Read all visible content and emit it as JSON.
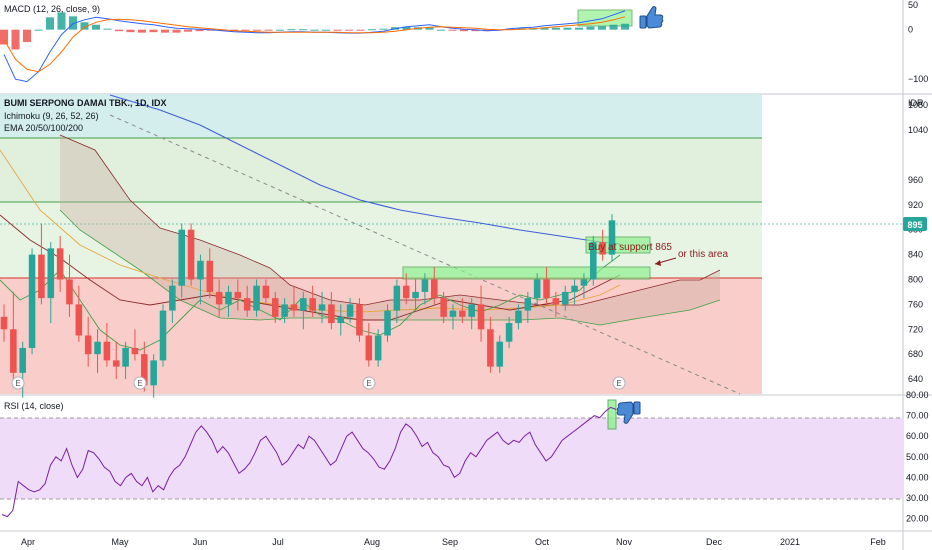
{
  "colors": {
    "up": "#26a69a",
    "down": "#ef5350",
    "macd_line": "#2962ff",
    "signal_line": "#ff6d00",
    "rsi_line": "#7b1fa2",
    "ema_blue": "#3f5fd8",
    "ichimoku_red": "#8b2a2a",
    "ichimoku_green": "#43a047",
    "zone_red": "#f8c9c6",
    "zone_green": "#dff0dc",
    "zone_teal": "#cdeaea",
    "rsi_band": "#eedcf8",
    "annotation": "#8b1c1c",
    "highlight_box": "#66e066"
  },
  "price_pane": {
    "title": "BUMI SERPONG DAMAI TBK., 1D, IDX",
    "indicators": [
      "Ichimoku (9, 26, 52, 26)",
      "EMA 20/50/100/200"
    ],
    "currency": "IDR",
    "last_price": "895",
    "earnings_marker": "E",
    "annotations": {
      "buy_support": "Buy at support 865",
      "or_area": "or this area"
    }
  },
  "macd_pane": {
    "title": "MACD (12, 26, close, 9)",
    "thumb_up_icon": "thumbs-up-icon"
  },
  "rsi_pane": {
    "title": "RSI (14, close)",
    "thumb_down_icon": "thumbs-down-icon"
  },
  "x_axis": {
    "labels": [
      "Apr",
      "May",
      "Jun",
      "Jul",
      "Aug",
      "Sep",
      "Oct",
      "Nov",
      "Dec",
      "2021",
      "Feb"
    ]
  },
  "chart_data": [
    {
      "type": "bar",
      "name": "MACD (12, 26, close, 9)",
      "y_ticks": [
        50,
        0,
        -100
      ],
      "ylim": [
        -130,
        60
      ],
      "macd": [
        -50,
        -100,
        -105,
        -85,
        -45,
        -10,
        12,
        20,
        25,
        22,
        18,
        15,
        12,
        10,
        6,
        3,
        2,
        1,
        0,
        -2,
        -4,
        -5,
        -6,
        -6,
        -5,
        -4,
        -4,
        -5,
        -5,
        -6,
        -7,
        -7,
        -5,
        -3,
        2,
        6,
        8,
        10,
        6,
        3,
        1,
        0,
        -2,
        -1,
        2,
        4,
        5,
        8,
        10,
        12,
        14,
        18,
        22,
        30,
        38
      ],
      "signal": [
        -20,
        -60,
        -80,
        -85,
        -70,
        -45,
        -15,
        5,
        15,
        20,
        21,
        20,
        18,
        15,
        12,
        9,
        6,
        4,
        2,
        0,
        -2,
        -3,
        -4,
        -5,
        -5,
        -5,
        -5,
        -5,
        -5,
        -5,
        -6,
        -6,
        -6,
        -5,
        -3,
        0,
        3,
        5,
        6,
        5,
        4,
        3,
        1,
        0,
        0,
        1,
        2,
        4,
        6,
        8,
        10,
        12,
        15,
        20,
        26
      ]
    },
    {
      "type": "candlestick",
      "name": "BUMI SERPONG DAMAI TBK., 1D, IDX",
      "y_ticks": [
        1080,
        1040,
        960,
        920,
        880,
        840,
        800,
        760,
        720,
        680,
        640
      ],
      "ylim": [
        616,
        1098
      ],
      "candles": [
        [
          740,
          760,
          700,
          720
        ],
        [
          720,
          780,
          640,
          650
        ],
        [
          650,
          700,
          610,
          690
        ],
        [
          690,
          850,
          680,
          840
        ],
        [
          840,
          890,
          760,
          770
        ],
        [
          770,
          860,
          730,
          850
        ],
        [
          850,
          870,
          780,
          800
        ],
        [
          800,
          840,
          740,
          760
        ],
        [
          760,
          790,
          700,
          710
        ],
        [
          710,
          740,
          660,
          680
        ],
        [
          680,
          720,
          650,
          700
        ],
        [
          700,
          730,
          660,
          670
        ],
        [
          670,
          700,
          640,
          660
        ],
        [
          660,
          700,
          640,
          690
        ],
        [
          690,
          720,
          670,
          680
        ],
        [
          680,
          700,
          620,
          630
        ],
        [
          630,
          680,
          610,
          670
        ],
        [
          670,
          760,
          660,
          750
        ],
        [
          750,
          800,
          730,
          790
        ],
        [
          790,
          890,
          770,
          880
        ],
        [
          880,
          890,
          790,
          800
        ],
        [
          800,
          840,
          760,
          830
        ],
        [
          830,
          850,
          770,
          780
        ],
        [
          780,
          800,
          740,
          760
        ],
        [
          760,
          790,
          740,
          780
        ],
        [
          780,
          800,
          750,
          770
        ],
        [
          770,
          790,
          740,
          750
        ],
        [
          750,
          800,
          740,
          790
        ],
        [
          790,
          800,
          760,
          770
        ],
        [
          770,
          780,
          730,
          740
        ],
        [
          740,
          770,
          730,
          760
        ],
        [
          760,
          790,
          740,
          750
        ],
        [
          750,
          780,
          720,
          770
        ],
        [
          770,
          790,
          740,
          750
        ],
        [
          750,
          780,
          730,
          760
        ],
        [
          760,
          780,
          720,
          730
        ],
        [
          730,
          760,
          710,
          740
        ],
        [
          740,
          770,
          730,
          760
        ],
        [
          760,
          770,
          700,
          710
        ],
        [
          710,
          730,
          660,
          670
        ],
        [
          670,
          720,
          660,
          710
        ],
        [
          710,
          760,
          700,
          750
        ],
        [
          750,
          800,
          730,
          790
        ],
        [
          790,
          810,
          760,
          770
        ],
        [
          770,
          800,
          750,
          780
        ],
        [
          780,
          810,
          760,
          800
        ],
        [
          800,
          820,
          760,
          770
        ],
        [
          770,
          780,
          730,
          740
        ],
        [
          740,
          760,
          720,
          750
        ],
        [
          750,
          770,
          730,
          740
        ],
        [
          740,
          770,
          720,
          760
        ],
        [
          760,
          790,
          700,
          720
        ],
        [
          720,
          740,
          650,
          660
        ],
        [
          660,
          710,
          650,
          700
        ],
        [
          700,
          740,
          690,
          730
        ],
        [
          730,
          760,
          720,
          750
        ],
        [
          750,
          780,
          730,
          770
        ],
        [
          770,
          810,
          760,
          800
        ],
        [
          800,
          820,
          760,
          770
        ],
        [
          770,
          780,
          740,
          760
        ],
        [
          760,
          790,
          750,
          780
        ],
        [
          780,
          800,
          760,
          790
        ],
        [
          790,
          810,
          770,
          800
        ],
        [
          800,
          870,
          790,
          860
        ],
        [
          860,
          880,
          830,
          840
        ],
        [
          840,
          905,
          830,
          895
        ]
      ],
      "horizontal_levels": [
        1040,
        935,
        803
      ]
    },
    {
      "type": "line",
      "name": "RSI (14, close)",
      "y_ticks": [
        80,
        70,
        60,
        50,
        40,
        30,
        20
      ],
      "ylim": [
        14,
        80
      ],
      "bands": [
        30,
        70
      ],
      "values": [
        22,
        21,
        24,
        38,
        36,
        34,
        33,
        34,
        37,
        46,
        50,
        48,
        54,
        46,
        40,
        44,
        53,
        52,
        49,
        45,
        43,
        38,
        36,
        40,
        42,
        38,
        36,
        40,
        33,
        36,
        34,
        40,
        44,
        46,
        50,
        56,
        62,
        65,
        62,
        58,
        52,
        55,
        52,
        47,
        42,
        44,
        47,
        52,
        58,
        60,
        56,
        52,
        46,
        48,
        52,
        56,
        54,
        60,
        58,
        54,
        50,
        46,
        48,
        54,
        60,
        62,
        58,
        54,
        52,
        49,
        45,
        44,
        48,
        54,
        62,
        66,
        64,
        60,
        55,
        57,
        52,
        50,
        46,
        45,
        40,
        42,
        48,
        52,
        50,
        54,
        58,
        60,
        62,
        58,
        56,
        58,
        57,
        60,
        62,
        56,
        52,
        48,
        50,
        54,
        58,
        60,
        62,
        64,
        66,
        68,
        70,
        69,
        72,
        74,
        73
      ]
    }
  ]
}
